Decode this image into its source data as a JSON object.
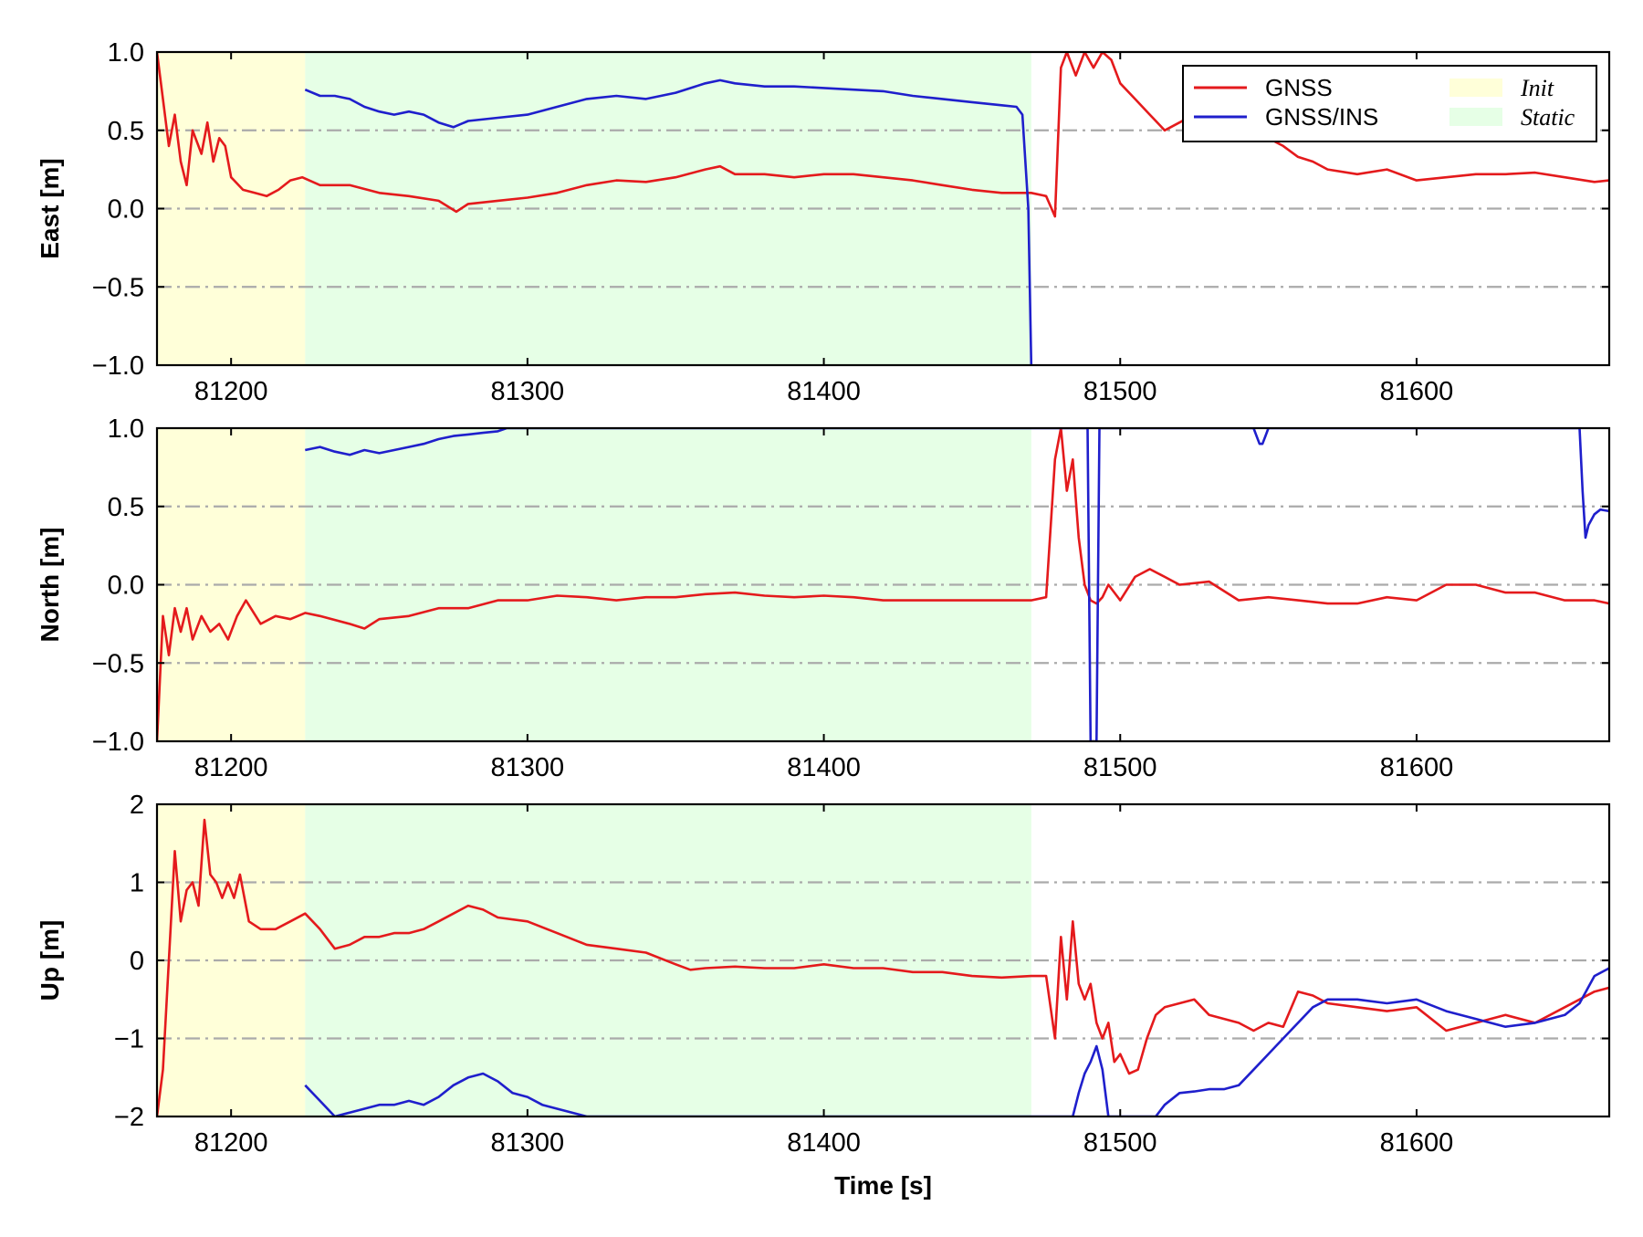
{
  "chart_data": [
    {
      "type": "line",
      "ylabel": "East [m]",
      "xlabel": "",
      "xlim": [
        81175,
        81665
      ],
      "ylim": [
        -1.0,
        1.0
      ],
      "xticks": [
        81200,
        81300,
        81400,
        81500,
        81600
      ],
      "xtick_labels": [
        "81200",
        "81300",
        "81400",
        "81500",
        "81600"
      ],
      "yticks": [
        -1.0,
        -0.5,
        0.0,
        0.5,
        1.0
      ],
      "ytick_labels": [
        "−1.0",
        "−0.5",
        "0.0",
        "0.5",
        "1.0"
      ],
      "grid": "horizontal dash-dot at ticks",
      "shaded_regions": [
        {
          "name": "Init",
          "x": [
            81175,
            81225
          ],
          "color": "#ffffd9"
        },
        {
          "name": "Static",
          "x": [
            81225,
            81470
          ],
          "color": "#e6ffe6"
        }
      ],
      "series": [
        {
          "name": "GNSS",
          "color": "#e41a1c",
          "x": [
            81175,
            81177,
            81179,
            81181,
            81183,
            81185,
            81187,
            81190,
            81192,
            81194,
            81196,
            81198,
            81200,
            81204,
            81208,
            81212,
            81216,
            81220,
            81224,
            81230,
            81240,
            81250,
            81260,
            81270,
            81276,
            81280,
            81290,
            81300,
            81310,
            81320,
            81330,
            81340,
            81350,
            81360,
            81365,
            81370,
            81380,
            81390,
            81400,
            81410,
            81420,
            81430,
            81440,
            81450,
            81460,
            81470,
            81475,
            81478,
            81480,
            81482,
            81485,
            81488,
            81491,
            81494,
            81497,
            81500,
            81505,
            81510,
            81515,
            81520,
            81525,
            81530,
            81540,
            81550,
            81555,
            81560,
            81565,
            81570,
            81580,
            81590,
            81600,
            81610,
            81620,
            81630,
            81640,
            81650,
            81660,
            81665
          ],
          "y": [
            1.0,
            0.7,
            0.4,
            0.6,
            0.3,
            0.15,
            0.5,
            0.35,
            0.55,
            0.3,
            0.45,
            0.4,
            0.2,
            0.12,
            0.1,
            0.08,
            0.12,
            0.18,
            0.2,
            0.15,
            0.15,
            0.1,
            0.08,
            0.05,
            -0.02,
            0.03,
            0.05,
            0.07,
            0.1,
            0.15,
            0.18,
            0.17,
            0.2,
            0.25,
            0.27,
            0.22,
            0.22,
            0.2,
            0.22,
            0.22,
            0.2,
            0.18,
            0.15,
            0.12,
            0.1,
            0.1,
            0.08,
            -0.05,
            0.9,
            1.0,
            0.85,
            1.0,
            0.9,
            1.0,
            0.95,
            0.8,
            0.7,
            0.6,
            0.5,
            0.55,
            0.6,
            0.7,
            0.55,
            0.45,
            0.4,
            0.33,
            0.3,
            0.25,
            0.22,
            0.25,
            0.18,
            0.2,
            0.22,
            0.22,
            0.23,
            0.2,
            0.17,
            0.18
          ]
        },
        {
          "name": "GNSS/INS",
          "color": "#1f1fcc",
          "x": [
            81225,
            81230,
            81235,
            81240,
            81245,
            81250,
            81255,
            81260,
            81265,
            81270,
            81275,
            81280,
            81290,
            81300,
            81310,
            81320,
            81330,
            81340,
            81350,
            81360,
            81365,
            81370,
            81380,
            81390,
            81400,
            81410,
            81420,
            81430,
            81440,
            81450,
            81460,
            81465,
            81467,
            81469,
            81470
          ],
          "y": [
            0.76,
            0.72,
            0.72,
            0.7,
            0.65,
            0.62,
            0.6,
            0.62,
            0.6,
            0.55,
            0.52,
            0.56,
            0.58,
            0.6,
            0.65,
            0.7,
            0.72,
            0.7,
            0.74,
            0.8,
            0.82,
            0.8,
            0.78,
            0.78,
            0.77,
            0.76,
            0.75,
            0.72,
            0.7,
            0.68,
            0.66,
            0.65,
            0.6,
            0.0,
            -1.0
          ]
        }
      ]
    },
    {
      "type": "line",
      "ylabel": "North [m]",
      "xlabel": "",
      "xlim": [
        81175,
        81665
      ],
      "ylim": [
        -1.0,
        1.0
      ],
      "xticks": [
        81200,
        81300,
        81400,
        81500,
        81600
      ],
      "xtick_labels": [
        "81200",
        "81300",
        "81400",
        "81500",
        "81600"
      ],
      "yticks": [
        -1.0,
        -0.5,
        0.0,
        0.5,
        1.0
      ],
      "ytick_labels": [
        "−1.0",
        "−0.5",
        "0.0",
        "0.5",
        "1.0"
      ],
      "grid": "horizontal dash-dot at ticks",
      "shaded_regions": [
        {
          "name": "Init",
          "x": [
            81175,
            81225
          ],
          "color": "#ffffd9"
        },
        {
          "name": "Static",
          "x": [
            81225,
            81470
          ],
          "color": "#e6ffe6"
        }
      ],
      "series": [
        {
          "name": "GNSS",
          "color": "#e41a1c",
          "x": [
            81175,
            81177,
            81179,
            81181,
            81183,
            81185,
            81187,
            81190,
            81193,
            81196,
            81199,
            81202,
            81205,
            81210,
            81215,
            81220,
            81225,
            81230,
            81240,
            81245,
            81250,
            81260,
            81270,
            81280,
            81290,
            81300,
            81310,
            81320,
            81330,
            81340,
            81350,
            81360,
            81370,
            81380,
            81390,
            81400,
            81410,
            81420,
            81430,
            81440,
            81450,
            81460,
            81470,
            81475,
            81478,
            81480,
            81482,
            81484,
            81486,
            81488,
            81490,
            81492,
            81494,
            81496,
            81500,
            81505,
            81510,
            81515,
            81520,
            81530,
            81540,
            81550,
            81560,
            81570,
            81580,
            81590,
            81600,
            81610,
            81620,
            81630,
            81640,
            81650,
            81660,
            81665
          ],
          "y": [
            -1.0,
            -0.2,
            -0.45,
            -0.15,
            -0.3,
            -0.15,
            -0.35,
            -0.2,
            -0.3,
            -0.25,
            -0.35,
            -0.2,
            -0.1,
            -0.25,
            -0.2,
            -0.22,
            -0.18,
            -0.2,
            -0.25,
            -0.28,
            -0.22,
            -0.2,
            -0.15,
            -0.15,
            -0.1,
            -0.1,
            -0.07,
            -0.08,
            -0.1,
            -0.08,
            -0.08,
            -0.06,
            -0.05,
            -0.07,
            -0.08,
            -0.07,
            -0.08,
            -0.1,
            -0.1,
            -0.1,
            -0.1,
            -0.1,
            -0.1,
            -0.08,
            0.8,
            1.0,
            0.6,
            0.8,
            0.3,
            0.0,
            -0.1,
            -0.12,
            -0.08,
            0.0,
            -0.1,
            0.05,
            0.1,
            0.05,
            0.0,
            0.02,
            -0.1,
            -0.08,
            -0.1,
            -0.12,
            -0.12,
            -0.08,
            -0.1,
            0.0,
            0.0,
            -0.05,
            -0.05,
            -0.1,
            -0.1,
            -0.12
          ]
        },
        {
          "name": "GNSS/INS",
          "color": "#1f1fcc",
          "x": [
            81225,
            81230,
            81235,
            81240,
            81245,
            81250,
            81255,
            81260,
            81265,
            81270,
            81275,
            81280,
            81285,
            81290,
            81293,
            81489,
            81490,
            81491,
            81492,
            81493,
            81494,
            81545,
            81546,
            81547,
            81548,
            81549,
            81550,
            81655,
            81656,
            81657,
            81658,
            81660,
            81662,
            81665
          ],
          "y": [
            0.86,
            0.88,
            0.85,
            0.83,
            0.86,
            0.84,
            0.86,
            0.88,
            0.9,
            0.93,
            0.95,
            0.96,
            0.97,
            0.98,
            1.0,
            1.0,
            -1.0,
            -1.0,
            -1.0,
            1.0,
            1.0,
            1.0,
            0.95,
            0.9,
            0.9,
            0.95,
            1.0,
            1.0,
            0.6,
            0.3,
            0.38,
            0.45,
            0.48,
            0.47
          ]
        }
      ]
    },
    {
      "type": "line",
      "ylabel": "Up [m]",
      "xlabel": "Time [s]",
      "xlim": [
        81175,
        81665
      ],
      "ylim": [
        -2,
        2
      ],
      "xticks": [
        81200,
        81300,
        81400,
        81500,
        81600
      ],
      "xtick_labels": [
        "81200",
        "81300",
        "81400",
        "81500",
        "81600"
      ],
      "yticks": [
        -2,
        -1,
        0,
        1,
        2
      ],
      "ytick_labels": [
        "−2",
        "−1",
        "0",
        "1",
        "2"
      ],
      "grid": "horizontal dash-dot at ticks",
      "shaded_regions": [
        {
          "name": "Init",
          "x": [
            81175,
            81225
          ],
          "color": "#ffffd9"
        },
        {
          "name": "Static",
          "x": [
            81225,
            81470
          ],
          "color": "#e6ffe6"
        }
      ],
      "series": [
        {
          "name": "GNSS",
          "color": "#e41a1c",
          "x": [
            81175,
            81177,
            81179,
            81181,
            81183,
            81185,
            81187,
            81189,
            81191,
            81193,
            81195,
            81197,
            81199,
            81201,
            81203,
            81206,
            81210,
            81215,
            81220,
            81225,
            81230,
            81235,
            81240,
            81245,
            81250,
            81255,
            81260,
            81265,
            81270,
            81275,
            81280,
            81285,
            81290,
            81300,
            81310,
            81320,
            81330,
            81340,
            81350,
            81355,
            81360,
            81370,
            81380,
            81390,
            81400,
            81410,
            81420,
            81430,
            81440,
            81450,
            81460,
            81470,
            81475,
            81478,
            81480,
            81482,
            81484,
            81486,
            81488,
            81490,
            81492,
            81494,
            81496,
            81498,
            81500,
            81503,
            81506,
            81509,
            81512,
            81515,
            81520,
            81525,
            81530,
            81540,
            81545,
            81550,
            81555,
            81560,
            81565,
            81570,
            81580,
            81590,
            81600,
            81610,
            81620,
            81630,
            81640,
            81650,
            81660,
            81665
          ],
          "y": [
            -2.0,
            -1.4,
            0.0,
            1.4,
            0.5,
            0.9,
            1.0,
            0.7,
            1.8,
            1.1,
            1.0,
            0.8,
            1.0,
            0.8,
            1.1,
            0.5,
            0.4,
            0.4,
            0.5,
            0.6,
            0.4,
            0.15,
            0.2,
            0.3,
            0.3,
            0.35,
            0.35,
            0.4,
            0.5,
            0.6,
            0.7,
            0.65,
            0.55,
            0.5,
            0.35,
            0.2,
            0.15,
            0.1,
            -0.05,
            -0.12,
            -0.1,
            -0.08,
            -0.1,
            -0.1,
            -0.05,
            -0.1,
            -0.1,
            -0.15,
            -0.15,
            -0.2,
            -0.22,
            -0.2,
            -0.2,
            -1.0,
            0.3,
            -0.5,
            0.5,
            -0.3,
            -0.5,
            -0.3,
            -0.8,
            -1.0,
            -0.8,
            -1.3,
            -1.2,
            -1.45,
            -1.4,
            -1.0,
            -0.7,
            -0.6,
            -0.55,
            -0.5,
            -0.7,
            -0.8,
            -0.9,
            -0.8,
            -0.85,
            -0.4,
            -0.45,
            -0.55,
            -0.6,
            -0.65,
            -0.6,
            -0.9,
            -0.8,
            -0.7,
            -0.8,
            -0.6,
            -0.4,
            -0.35
          ]
        },
        {
          "name": "GNSS/INS",
          "color": "#1f1fcc",
          "x": [
            81225,
            81230,
            81235,
            81240,
            81245,
            81250,
            81255,
            81260,
            81265,
            81270,
            81275,
            81280,
            81285,
            81290,
            81295,
            81300,
            81305,
            81310,
            81315,
            81320,
            81322,
            81484,
            81486,
            81488,
            81490,
            81492,
            81494,
            81496,
            81498,
            81500,
            81512,
            81515,
            81520,
            81525,
            81530,
            81535,
            81540,
            81545,
            81550,
            81555,
            81560,
            81565,
            81570,
            81580,
            81590,
            81600,
            81610,
            81620,
            81630,
            81640,
            81650,
            81655,
            81660,
            81665
          ],
          "y": [
            -1.6,
            -1.8,
            -2.0,
            -1.95,
            -1.9,
            -1.85,
            -1.85,
            -1.8,
            -1.85,
            -1.75,
            -1.6,
            -1.5,
            -1.45,
            -1.55,
            -1.7,
            -1.75,
            -1.85,
            -1.9,
            -1.95,
            -2.0,
            -2.0,
            -2.0,
            -1.7,
            -1.45,
            -1.3,
            -1.1,
            -1.4,
            -2.0,
            -2.0,
            -2.0,
            -2.0,
            -1.85,
            -1.7,
            -1.68,
            -1.65,
            -1.65,
            -1.6,
            -1.4,
            -1.2,
            -1.0,
            -0.8,
            -0.6,
            -0.5,
            -0.5,
            -0.55,
            -0.5,
            -0.65,
            -0.75,
            -0.85,
            -0.8,
            -0.7,
            -0.55,
            -0.2,
            -0.1
          ]
        }
      ]
    }
  ],
  "legend": {
    "placement": "top-right",
    "entries": [
      {
        "label": "GNSS",
        "kind": "line",
        "color": "#e41a1c"
      },
      {
        "label": "GNSS/INS",
        "kind": "line",
        "color": "#1f1fcc"
      },
      {
        "label": "Init",
        "kind": "patch",
        "color": "#ffffd9"
      },
      {
        "label": "Static",
        "kind": "patch",
        "color": "#e6ffe6"
      }
    ]
  }
}
